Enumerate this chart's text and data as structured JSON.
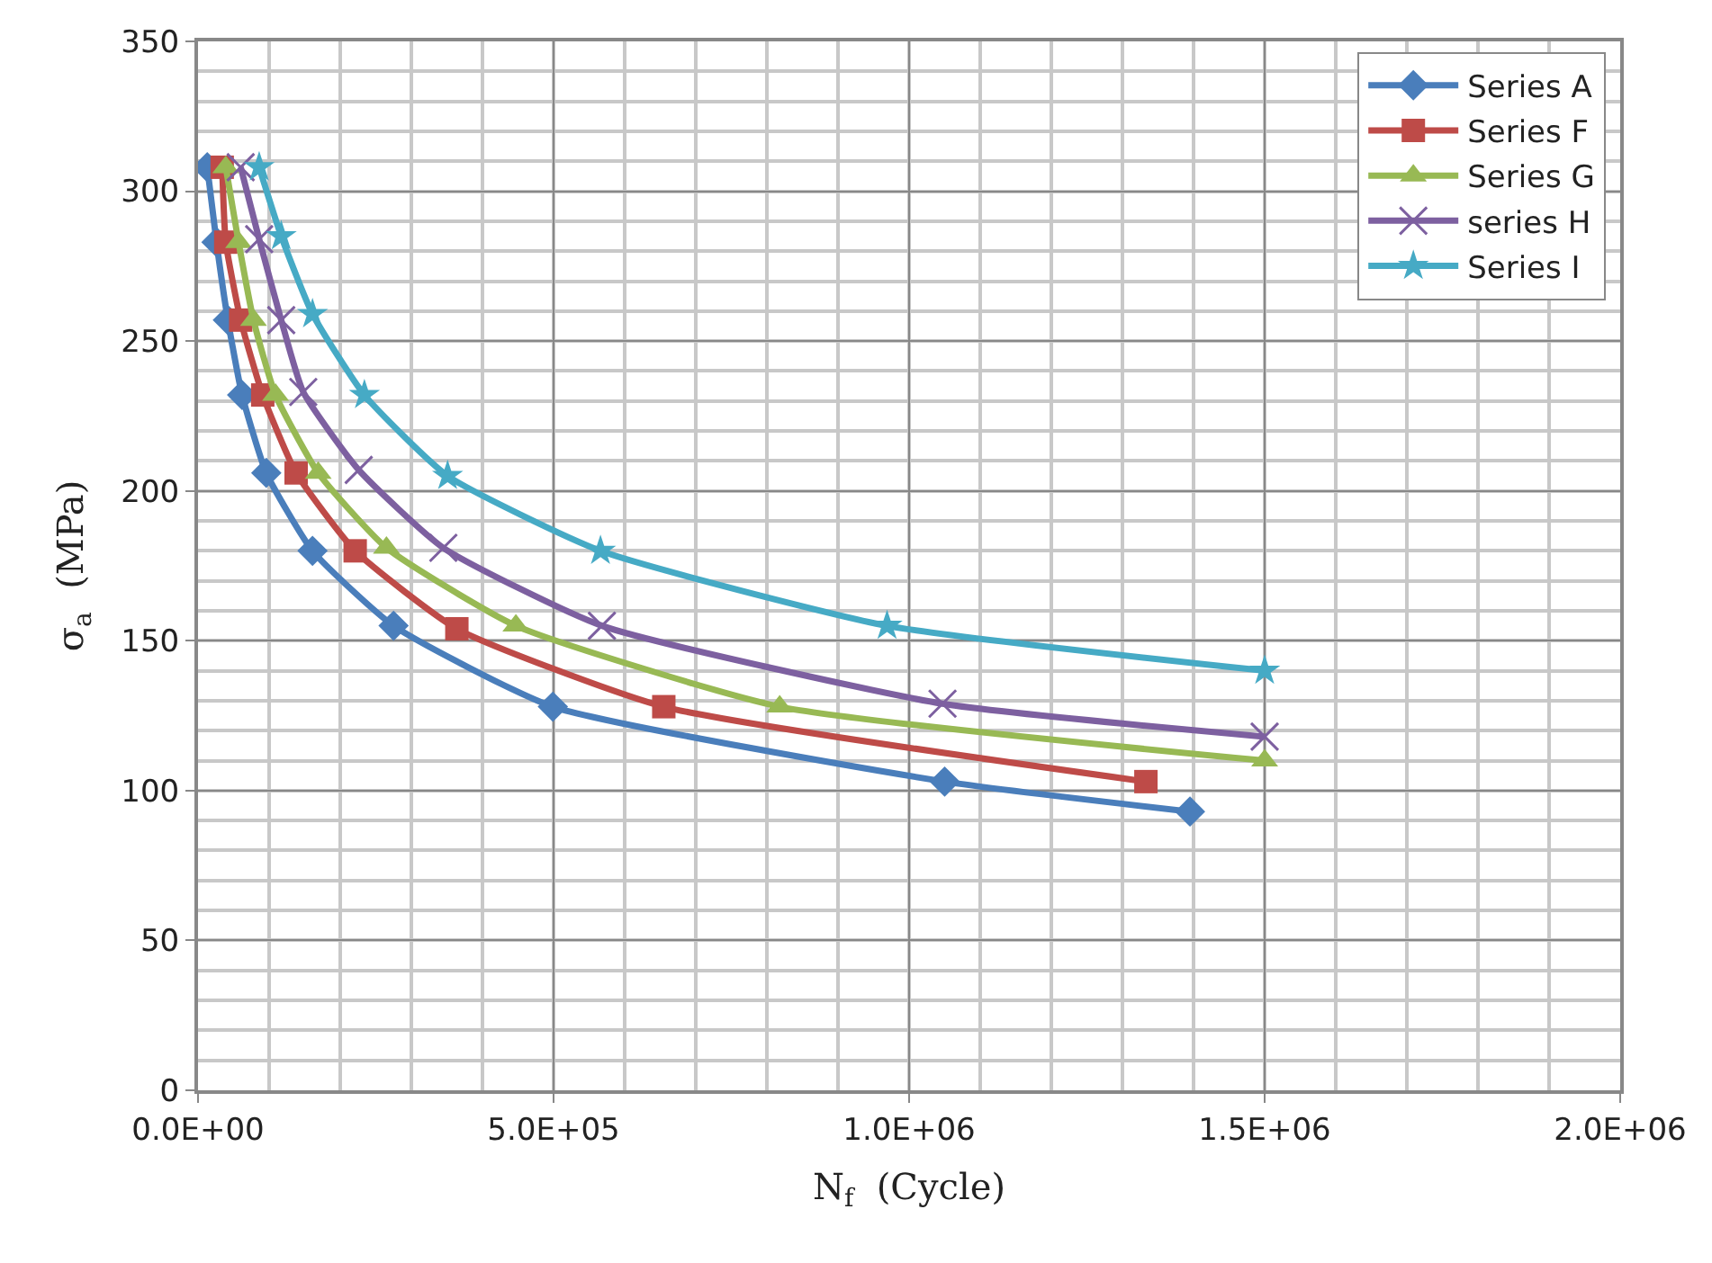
{
  "chart_data": {
    "type": "line",
    "xlabel": "N$_{f}$  (Cycle)",
    "ylabel": "σ$_{a}$  (MPa)",
    "xlim": [
      0,
      2000000
    ],
    "ylim": [
      0,
      350
    ],
    "xticks": [
      {
        "value": 0,
        "label": "0.0E+00"
      },
      {
        "value": 500000,
        "label": "5.0E+05"
      },
      {
        "value": 1000000,
        "label": "1.0E+06"
      },
      {
        "value": 1500000,
        "label": "1.5E+06"
      },
      {
        "value": 2000000,
        "label": "2.0E+06"
      }
    ],
    "yticks": [
      0,
      50,
      100,
      150,
      200,
      250,
      300,
      350
    ],
    "grid": true,
    "legend": "top right",
    "series": [
      {
        "name": "Series A",
        "color": "#4a7ebb",
        "marker": "diamond",
        "x": [
          13000,
          26000,
          42000,
          62000,
          96000,
          161000,
          275000,
          499000,
          1050000,
          1395000
        ],
        "values": [
          308,
          283,
          257,
          232,
          206,
          180,
          155,
          128,
          103,
          93
        ]
      },
      {
        "name": "Series F",
        "color": "#be4b48",
        "marker": "square",
        "x": [
          34000,
          39000,
          60000,
          91000,
          138000,
          221000,
          364000,
          655000,
          1333000
        ],
        "values": [
          308,
          283,
          257,
          232,
          206,
          180,
          154,
          128,
          103
        ]
      },
      {
        "name": "Series G",
        "color": "#98b954",
        "marker": "triangle",
        "x": [
          39000,
          57000,
          78000,
          109000,
          169000,
          265000,
          447000,
          818000,
          1500000
        ],
        "values": [
          308,
          283,
          257,
          232,
          206,
          181,
          155,
          128,
          110
        ]
      },
      {
        "name": "series H",
        "color": "#7d60a0",
        "marker": "cross",
        "x": [
          60000,
          86000,
          117000,
          148000,
          226000,
          345000,
          568000,
          1047000,
          1500000
        ],
        "values": [
          308,
          284,
          257,
          233,
          207,
          181,
          155,
          129,
          118
        ]
      },
      {
        "name": "Series I",
        "color": "#46aac5",
        "marker": "star",
        "x": [
          86000,
          117000,
          161000,
          234000,
          351000,
          566000,
          969000,
          1500000
        ],
        "values": [
          308,
          285,
          259,
          232,
          205,
          180,
          155,
          140
        ]
      }
    ]
  }
}
